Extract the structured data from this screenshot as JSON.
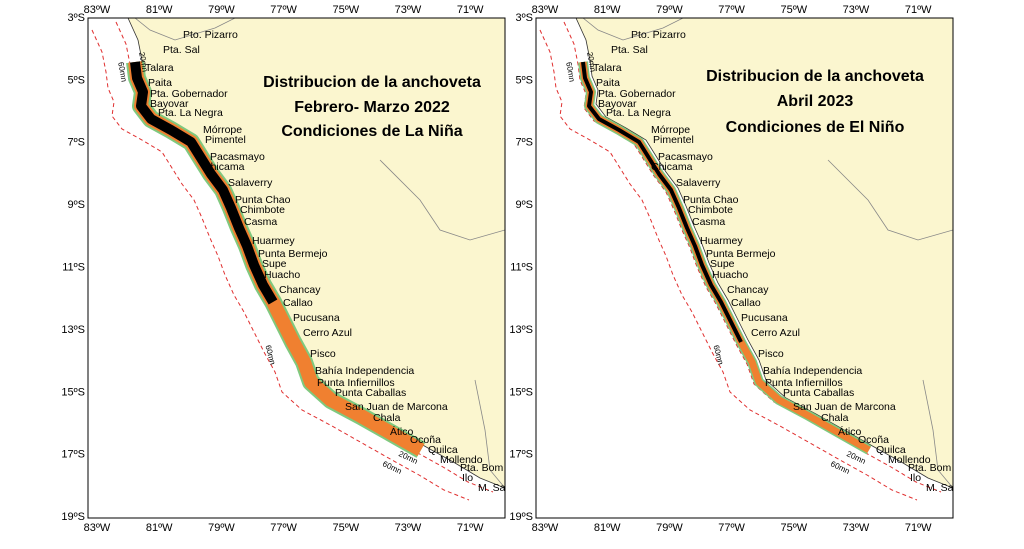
{
  "panels": [
    {
      "title": [
        "Distribucion de la anchoveta",
        "Febrero- Marzo 2022",
        "Condiciones de La Niña"
      ]
    },
    {
      "title": [
        "Distribucion de la anchoveta",
        "Abril 2023",
        "Condiciones de El Niño"
      ]
    }
  ],
  "lon_ticks": [
    "83ºW",
    "81ºW",
    "79ºW",
    "77ºW",
    "75ºW",
    "73ºW",
    "71ºW"
  ],
  "lat_ticks": [
    "3ºS",
    "5ºS",
    "7ºS",
    "9ºS",
    "11ºS",
    "13ºS",
    "15ºS",
    "17ºS",
    "19ºS"
  ],
  "places": [
    "Pto. Pizarro",
    "Pta. Sal",
    "Talara",
    "Paita",
    "Pta. Gobernador",
    "Bayovar",
    "Pta. La Negra",
    "Mórrope",
    "Pimentel",
    "Pacasmayo",
    "Chicama",
    "Salaverry",
    "Punta Chao",
    "Chimbote",
    "Casma",
    "Huarmey",
    "Punta Bermejo",
    "Supe",
    "Huacho",
    "Chancay",
    "Callao",
    "Pucusana",
    "Cerro Azul",
    "Pisco",
    "Bahía Independencia",
    "Punta Infiernillos",
    "Punta Caballas",
    "San Juan de Marcona",
    "Chala",
    "Ático",
    "Ocoña",
    "Quilca",
    "Mollendo",
    "Pta. Bom",
    "Ilo",
    "M. Sa"
  ],
  "contour_labels": [
    "60mn",
    "20mn"
  ]
}
